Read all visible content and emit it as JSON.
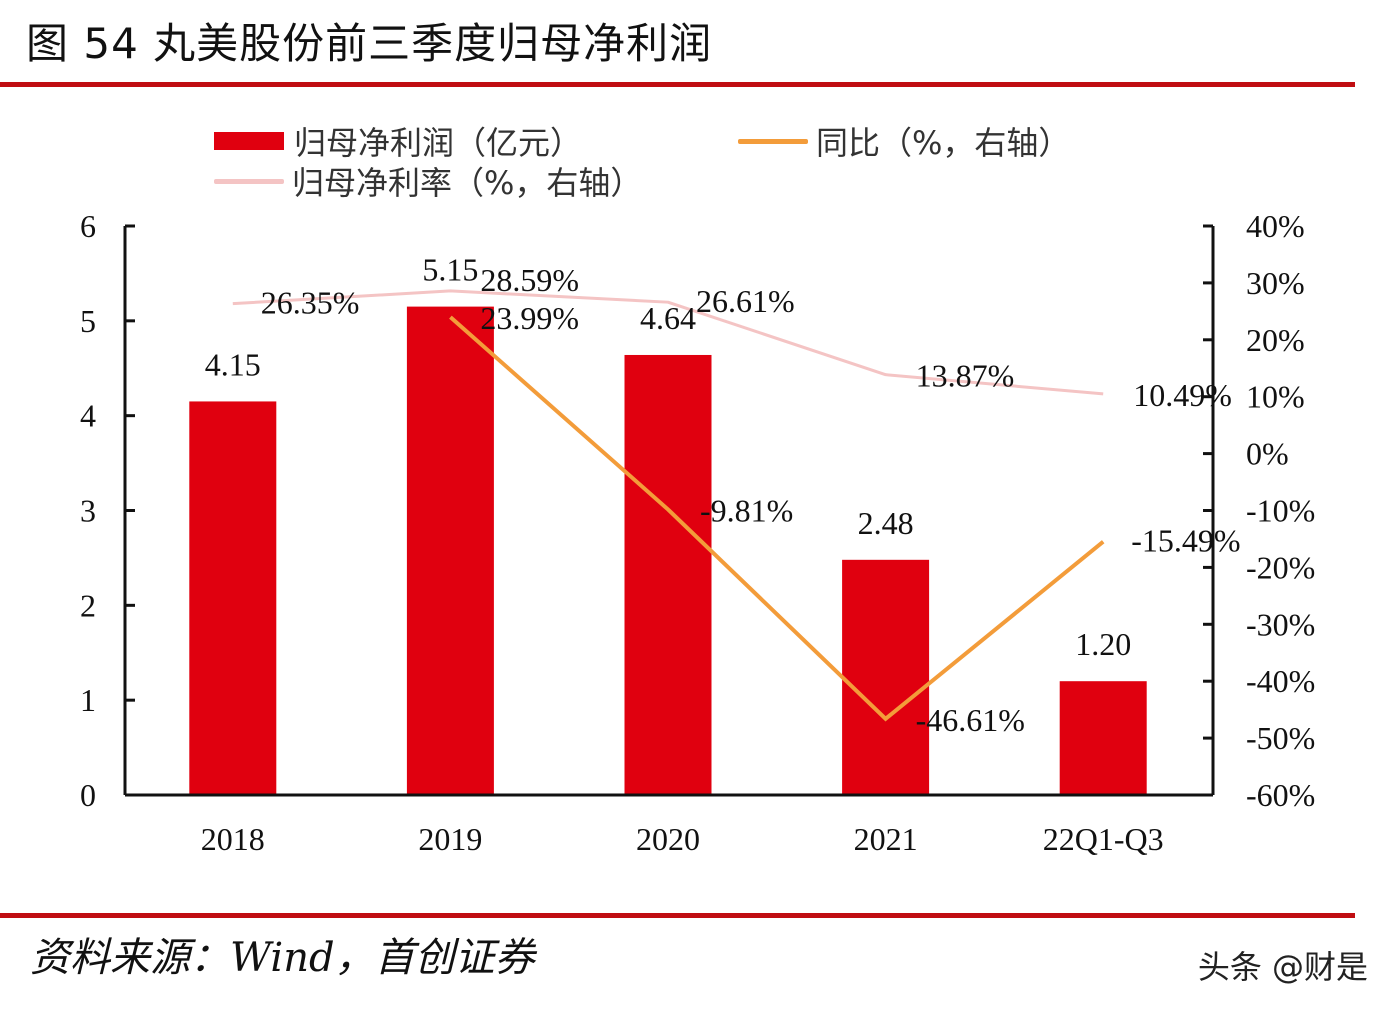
{
  "header": {
    "title": "图  54 丸美股份前三季度归母净利润"
  },
  "legend": {
    "items": [
      {
        "label": "归母净利润（亿元）",
        "type": "bar",
        "color": "#e0000f"
      },
      {
        "label": "同比（%，右轴）",
        "type": "line",
        "color": "#f39c3a"
      },
      {
        "label": "归母净利率（%，右轴）",
        "type": "line",
        "color": "#f4c4c4"
      }
    ]
  },
  "footer": {
    "source": "资料来源：Wind，首创证券",
    "watermark": "头条 @财是"
  },
  "chart_data": {
    "type": "bar",
    "title": "图 54 丸美股份前三季度归母净利润",
    "categories": [
      "2018",
      "2019",
      "2020",
      "2021",
      "22Q1-Q3"
    ],
    "left_axis": {
      "ylim": [
        0,
        6
      ],
      "ticks": [
        "0",
        "1",
        "2",
        "3",
        "4",
        "5",
        "6"
      ]
    },
    "right_axis": {
      "ylim": [
        -60,
        40
      ],
      "ticks": [
        "-60%",
        "-50%",
        "-40%",
        "-30%",
        "-20%",
        "-10%",
        "0%",
        "10%",
        "20%",
        "30%",
        "40%"
      ]
    },
    "series": [
      {
        "name": "归母净利润（亿元）",
        "type": "bar",
        "axis": "left",
        "color": "#e0000f",
        "values": [
          4.15,
          5.15,
          4.64,
          2.48,
          1.2
        ],
        "labels": [
          "4.15",
          "5.15",
          "4.64",
          "2.48",
          "1.20"
        ]
      },
      {
        "name": "同比（%，右轴）",
        "type": "line",
        "axis": "right",
        "color": "#f39c3a",
        "values": [
          null,
          23.99,
          -9.81,
          -46.61,
          -15.49
        ],
        "labels": [
          "",
          "23.99%",
          "-9.81%",
          "-46.61%",
          "-15.49%"
        ]
      },
      {
        "name": "归母净利率（%，右轴）",
        "type": "line",
        "axis": "right",
        "color": "#f4c4c4",
        "values": [
          26.35,
          28.59,
          26.61,
          13.87,
          10.49
        ],
        "labels": [
          "26.35%",
          "28.59%",
          "26.61%",
          "13.87%",
          "10.49%"
        ]
      }
    ],
    "xlabel": "",
    "ylabel": "",
    "grid": false,
    "legend_position": "top"
  }
}
